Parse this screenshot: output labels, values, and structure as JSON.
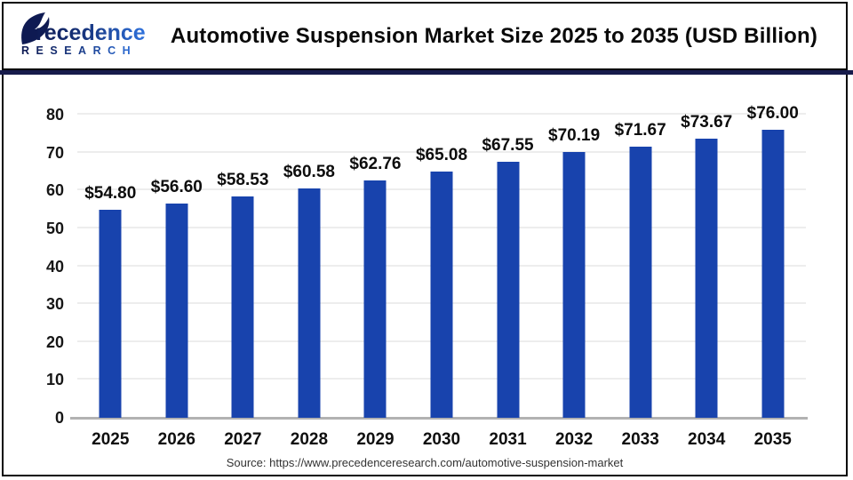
{
  "header": {
    "logo": {
      "text": "Precedence",
      "subtext": "RESEARCH"
    },
    "title": "Automotive Suspension Market Size 2025 to 2035 (USD Billion)"
  },
  "chart_data": {
    "type": "bar",
    "title": "Automotive Suspension Market Size 2025 to 2035 (USD Billion)",
    "categories": [
      "2025",
      "2026",
      "2027",
      "2028",
      "2029",
      "2030",
      "2031",
      "2032",
      "2033",
      "2034",
      "2035"
    ],
    "values": [
      54.8,
      56.6,
      58.53,
      60.58,
      62.76,
      65.08,
      67.55,
      70.19,
      71.67,
      73.67,
      76.0
    ],
    "value_labels": [
      "$54.80",
      "$56.60",
      "$58.53",
      "$60.58",
      "$62.76",
      "$65.08",
      "$67.55",
      "$70.19",
      "$71.67",
      "$73.67",
      "$76.00"
    ],
    "unit": "USD Billion",
    "xlabel": "",
    "ylabel": "",
    "ylim": [
      0,
      80
    ],
    "ytick_step": 10,
    "grid": true,
    "legend": false,
    "bar_color": "#1843ad"
  },
  "footer": {
    "source": "Source: https://www.precedenceresearch.com/automotive-suspension-market"
  },
  "colors": {
    "bar": "#1843ad",
    "divider_navy": "#171b4b",
    "logo_navy": "#0e1a52",
    "logo_blue": "#2f72dd",
    "axis_gray": "#b2b2b2",
    "gridline": "#ededed"
  }
}
